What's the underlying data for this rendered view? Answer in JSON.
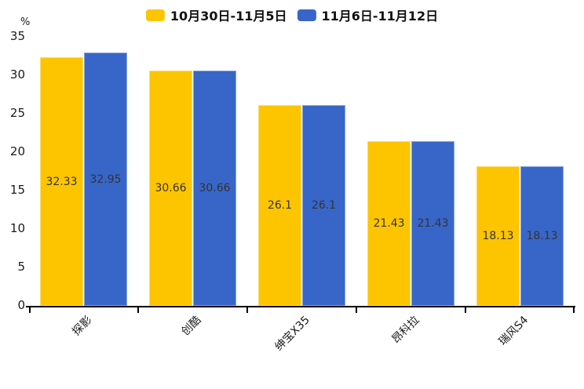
{
  "chart_data": {
    "type": "bar",
    "title": "",
    "unit_label": "%",
    "categories": [
      "探影",
      "创酷",
      "绅宝X35",
      "昂科拉",
      "瑞风S4"
    ],
    "series": [
      {
        "name": "10月30日-11月5日",
        "color": "#FDC500",
        "values": [
          32.33,
          30.66,
          26.1,
          21.43,
          18.13
        ]
      },
      {
        "name": "11月6日-11月12日",
        "color": "#3866C8",
        "values": [
          32.95,
          30.66,
          26.1,
          21.43,
          18.13
        ]
      }
    ],
    "ylim": [
      0,
      35
    ],
    "yticks": [
      0,
      5,
      10,
      15,
      20,
      25,
      30,
      35
    ],
    "grid": false,
    "legend_position": "top",
    "value_label_color": "#333333",
    "axis_color": "#000000"
  }
}
